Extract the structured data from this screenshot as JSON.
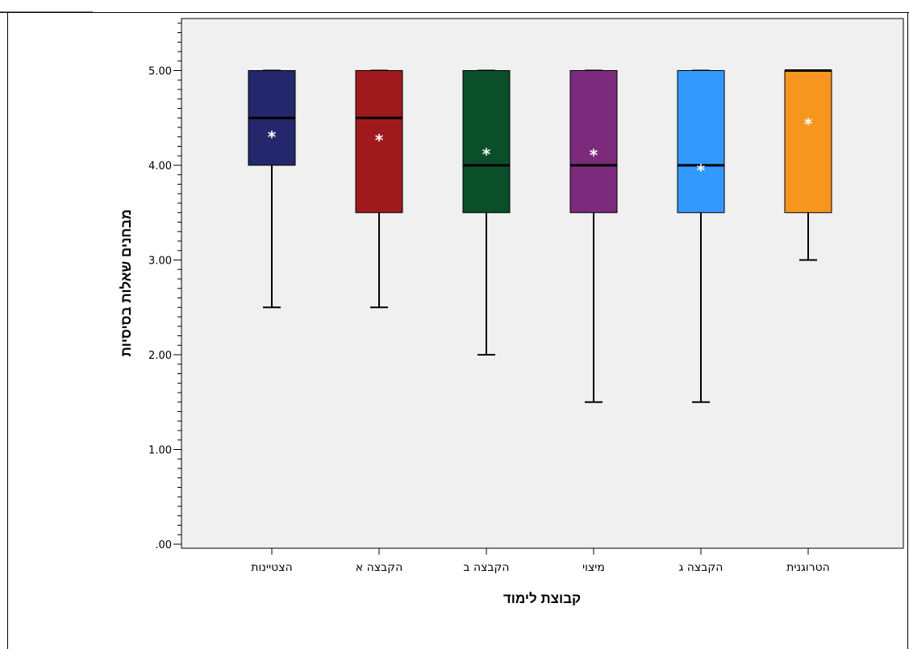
{
  "chart_data": {
    "type": "boxplot",
    "xlabel": "קבוצת לימוד",
    "ylabel": "מבחנים שאלות בסיסיות",
    "ylim": [
      0,
      5.5
    ],
    "y_ticks": [
      ".00",
      "1.00",
      "2.00",
      "3.00",
      "4.00",
      "5.00"
    ],
    "grid": false,
    "legend": "none",
    "plot_background": "#f0f0f0",
    "categories": [
      "הצטיינות",
      "הקבצה א",
      "הקבצה ב",
      "מיצוי",
      "הקבצה ג",
      "הטרוגנית"
    ],
    "mean_marker": "*",
    "boxes": [
      {
        "category": "הצטיינות",
        "min": 2.5,
        "q1": 4.0,
        "median": 4.5,
        "q3": 5.0,
        "max": 5.0,
        "mean": 4.33,
        "color": "#24276b"
      },
      {
        "category": "הקבצה א",
        "min": 2.5,
        "q1": 3.5,
        "median": 4.5,
        "q3": 5.0,
        "max": 5.0,
        "mean": 4.3,
        "color": "#9e1a1c"
      },
      {
        "category": "הקבצה ב",
        "min": 2.0,
        "q1": 3.5,
        "median": 4.0,
        "q3": 5.0,
        "max": 5.0,
        "mean": 4.15,
        "color": "#0a4f2a"
      },
      {
        "category": "מיצוי",
        "min": 1.5,
        "q1": 3.5,
        "median": 4.0,
        "q3": 5.0,
        "max": 5.0,
        "mean": 4.14,
        "color": "#7c2b7c"
      },
      {
        "category": "הקבצה ג",
        "min": 1.5,
        "q1": 3.5,
        "median": 4.0,
        "q3": 5.0,
        "max": 5.0,
        "mean": 3.98,
        "color": "#3399ff"
      },
      {
        "category": "הטרוגנית",
        "min": 3.0,
        "q1": 3.5,
        "median": 5.0,
        "q3": 5.0,
        "max": 5.0,
        "mean": 4.47,
        "color": "#f7961e"
      }
    ]
  }
}
